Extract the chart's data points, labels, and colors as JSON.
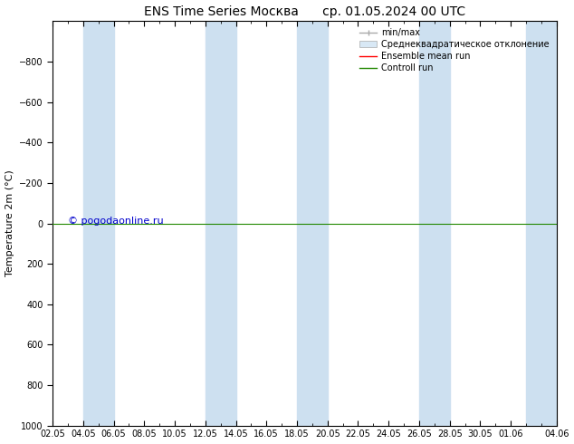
{
  "title_left": "ENS Time Series Москва",
  "title_right": "ср. 01.05.2024 00 UTC",
  "ylabel": "Temperature 2m (°C)",
  "ylim_bottom": 1000,
  "ylim_top": -1000,
  "yticks": [
    -800,
    -600,
    -400,
    -200,
    0,
    200,
    400,
    600,
    800,
    1000
  ],
  "xtick_labels": [
    "02.05",
    "04.05",
    "06.05",
    "08.05",
    "10.05",
    "12.05",
    "14.05",
    "16.05",
    "18.05",
    "20.05",
    "22.05",
    "24.05",
    "26.05",
    "28.05",
    "30.05",
    "01.06",
    "04.06"
  ],
  "xtick_positions": [
    0,
    2,
    4,
    6,
    8,
    10,
    12,
    14,
    16,
    18,
    20,
    22,
    24,
    26,
    28,
    30,
    33
  ],
  "x_start": 0,
  "x_end": 33,
  "blue_bands": [
    [
      2,
      4
    ],
    [
      10,
      12
    ],
    [
      16,
      18
    ],
    [
      24,
      26
    ],
    [
      31,
      33
    ]
  ],
  "band_color": "#cde0f0",
  "green_line_y": 0,
  "green_color": "#228800",
  "red_color": "#ff0000",
  "watermark": "© pogodaonline.ru",
  "watermark_color": "#0000cc",
  "legend_labels": [
    "min/max",
    "Среднеквадратическое отклонение",
    "Ensemble mean run",
    "Controll run"
  ],
  "legend_line_colors": [
    "#aaaaaa",
    "#cccccc",
    "#ff0000",
    "#228800"
  ],
  "bg_color": "#ffffff",
  "title_fontsize": 10,
  "axis_label_fontsize": 8,
  "tick_fontsize": 7,
  "legend_fontsize": 7
}
